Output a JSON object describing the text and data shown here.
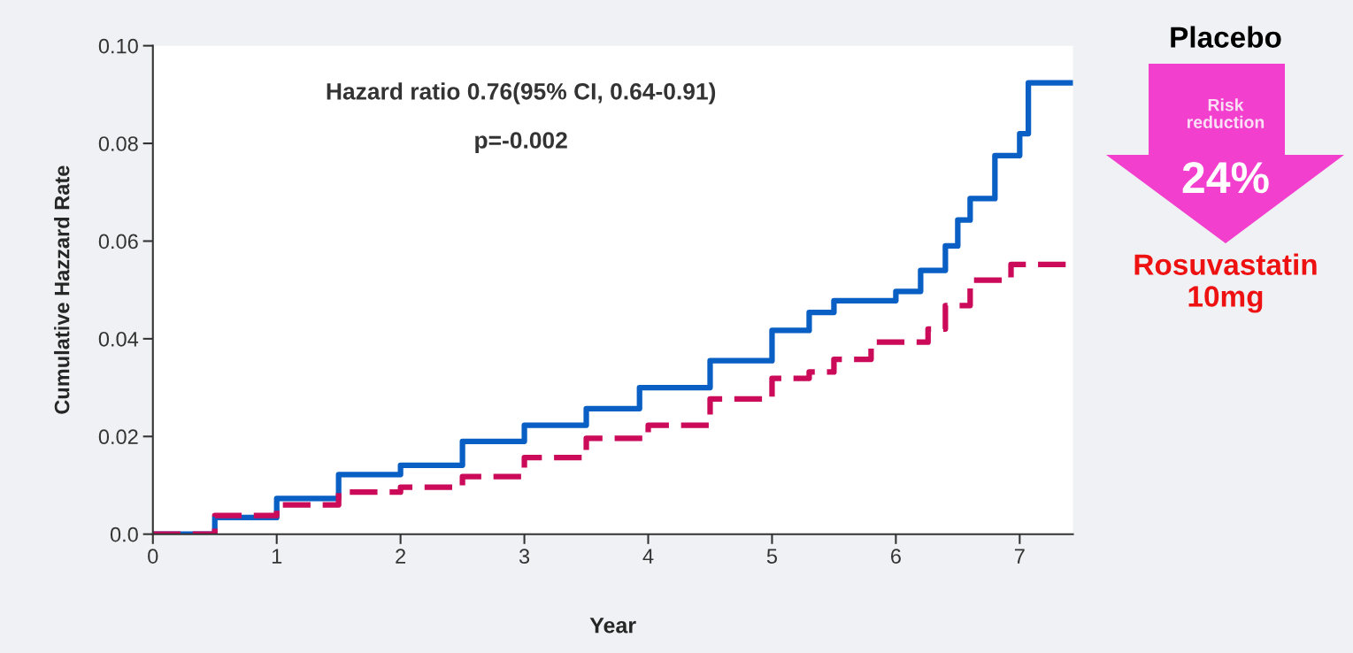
{
  "chart_data": {
    "type": "step",
    "xlabel": "Year",
    "ylabel": "Cumulative Hazzard Rate",
    "xlim": [
      0,
      7.43
    ],
    "ylim": [
      0,
      0.1
    ],
    "xticks": [
      0,
      1,
      2,
      3,
      4,
      5,
      6,
      7
    ],
    "yticks": [
      {
        "value": 0,
        "label": "0.0"
      },
      {
        "value": 0.02,
        "label": "0.02"
      },
      {
        "value": 0.04,
        "label": "0.04"
      },
      {
        "value": 0.06,
        "label": "0.06"
      },
      {
        "value": 0.08,
        "label": "0.08"
      },
      {
        "value": 0.1,
        "label": "0.10"
      }
    ],
    "grid": false,
    "legend": false,
    "series": [
      {
        "color": "#0a5fc4",
        "line_style": "solid",
        "x": [
          0,
          0.5,
          1,
          1.5,
          2,
          2.5,
          3,
          3.5,
          3.93,
          4.5,
          5,
          5.3,
          5.5,
          6,
          6.2,
          6.4,
          6.5,
          6.6,
          6.8,
          7.0,
          7.07,
          7.43
        ],
        "values": [
          0,
          0.0034,
          0.0073,
          0.0122,
          0.0141,
          0.019,
          0.0223,
          0.0257,
          0.03,
          0.0355,
          0.0417,
          0.0454,
          0.0478,
          0.0497,
          0.054,
          0.059,
          0.0643,
          0.0687,
          0.0775,
          0.082,
          0.0924,
          0.0924
        ]
      },
      {
        "color": "#cc0a5a",
        "line_style": "dashed",
        "x": [
          0,
          0.5,
          1,
          1.5,
          2,
          2.5,
          3,
          3.5,
          4,
          4.5,
          5,
          5.3,
          5.5,
          5.8,
          6.26,
          6.4,
          6.6,
          6.93,
          7.43
        ],
        "values": [
          0,
          0.0038,
          0.006,
          0.0086,
          0.0096,
          0.0118,
          0.0157,
          0.0196,
          0.0223,
          0.0277,
          0.0319,
          0.0332,
          0.0358,
          0.0393,
          0.042,
          0.0468,
          0.052,
          0.0552,
          0.0552
        ]
      }
    ],
    "annotations": [
      "Hazard ratio 0.76(95% CI, 0.64-0.91)",
      "p=-0.002",
      "Placebo",
      "Risk\nreduction",
      "24%",
      "Rosuvastatin\n10mg"
    ]
  }
}
